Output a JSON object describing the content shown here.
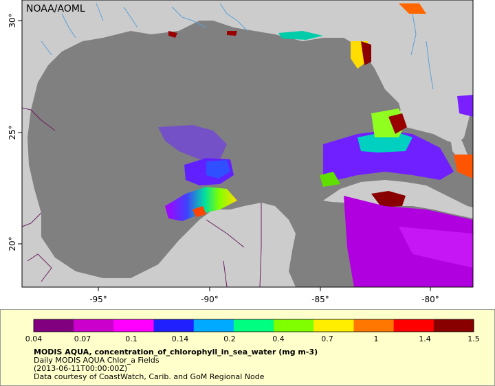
{
  "map": {
    "watermark": "NOAA/AOML",
    "lon_ticks": [
      "-95°",
      "-90°",
      "-85°",
      "-80°"
    ],
    "lat_ticks": [
      "30°",
      "25°",
      "20°"
    ],
    "colors": {
      "ocean_nodata": "#808080",
      "land": "#cccccc",
      "rivers": "#5aa0d8",
      "borders": "#6b1f5f"
    }
  },
  "legend": {
    "labels": [
      "0.04",
      "0.07",
      "0.1",
      "0.14",
      "0.2",
      "0.4",
      "0.7",
      "1",
      "1.4",
      "1.5"
    ],
    "colors": [
      "#800080",
      "#cc00cc",
      "#ff00ff",
      "#2020ff",
      "#00aaff",
      "#00ff80",
      "#80ff00",
      "#ffee00",
      "#ff7700",
      "#ff0000",
      "#880000"
    ]
  },
  "notes": {
    "title": "MODIS AQUA, concentration_of_chlorophyll_in_sea_water (mg m-3)",
    "subtitle": "Daily MODIS AQUA Chlor_a Fields",
    "time": "(2013-06-11T00:00:00Z)",
    "credit": "Data courtesy of CoastWatch, Carib. and GoM Regional Node"
  }
}
